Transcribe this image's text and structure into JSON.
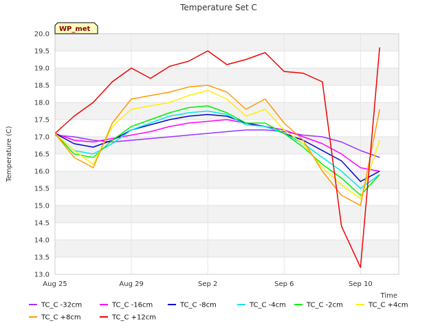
{
  "chart_data": {
    "type": "line",
    "title": "Temperature Set C",
    "xlabel": "Time",
    "ylabel": "Temperature (C)",
    "badge": "WP_met",
    "ylim": [
      13.0,
      20.0
    ],
    "yticks": [
      "13.0",
      "13.5",
      "14.0",
      "14.5",
      "15.0",
      "15.5",
      "16.0",
      "16.5",
      "17.0",
      "17.5",
      "18.0",
      "18.5",
      "19.0",
      "19.5",
      "20.0"
    ],
    "xlim": [
      "2023-08-25",
      "2023-09-12"
    ],
    "xticks": [
      "Aug 25",
      "Aug 29",
      "Sep 2",
      "Sep 6",
      "Sep 10"
    ],
    "xtick_dates": [
      "2023-08-25",
      "2023-08-29",
      "2023-09-02",
      "2023-09-06",
      "2023-09-10"
    ],
    "grid": true,
    "legend_position": "bottom",
    "series": [
      {
        "name": "TC_C -32cm",
        "color": "#9b30ff",
        "x": [
          "2023-08-25",
          "2023-08-26",
          "2023-08-27",
          "2023-08-28",
          "2023-08-29",
          "2023-08-30",
          "2023-08-31",
          "2023-09-01",
          "2023-09-02",
          "2023-09-03",
          "2023-09-04",
          "2023-09-05",
          "2023-09-06",
          "2023-09-07",
          "2023-09-08",
          "2023-09-09",
          "2023-09-10",
          "2023-09-11"
        ],
        "values": [
          17.05,
          17.0,
          16.9,
          16.85,
          16.9,
          16.95,
          17.0,
          17.05,
          17.1,
          17.15,
          17.2,
          17.2,
          17.15,
          17.05,
          17.0,
          16.85,
          16.6,
          16.4
        ]
      },
      {
        "name": "TC_C -16cm",
        "color": "#ff00ff",
        "x": [
          "2023-08-25",
          "2023-08-26",
          "2023-08-27",
          "2023-08-28",
          "2023-08-29",
          "2023-08-30",
          "2023-08-31",
          "2023-09-01",
          "2023-09-02",
          "2023-09-03",
          "2023-09-04",
          "2023-09-05",
          "2023-09-06",
          "2023-09-07",
          "2023-09-08",
          "2023-09-09",
          "2023-09-10",
          "2023-09-11"
        ],
        "values": [
          17.1,
          16.9,
          16.85,
          16.95,
          17.05,
          17.15,
          17.3,
          17.4,
          17.45,
          17.5,
          17.4,
          17.3,
          17.2,
          17.0,
          16.8,
          16.5,
          16.1,
          16.0
        ]
      },
      {
        "name": "TC_C -8cm",
        "color": "#0000cc",
        "x": [
          "2023-08-25",
          "2023-08-26",
          "2023-08-27",
          "2023-08-28",
          "2023-08-29",
          "2023-08-30",
          "2023-08-31",
          "2023-09-01",
          "2023-09-02",
          "2023-09-03",
          "2023-09-04",
          "2023-09-05",
          "2023-09-06",
          "2023-09-07",
          "2023-09-08",
          "2023-09-09",
          "2023-09-10",
          "2023-09-11"
        ],
        "values": [
          17.1,
          16.8,
          16.7,
          16.9,
          17.2,
          17.35,
          17.5,
          17.6,
          17.65,
          17.6,
          17.4,
          17.3,
          17.1,
          16.9,
          16.6,
          16.3,
          15.7,
          16.0
        ]
      },
      {
        "name": "TC_C -4cm",
        "color": "#00e5ee",
        "x": [
          "2023-08-25",
          "2023-08-26",
          "2023-08-27",
          "2023-08-28",
          "2023-08-29",
          "2023-08-30",
          "2023-08-31",
          "2023-09-01",
          "2023-09-02",
          "2023-09-03",
          "2023-09-04",
          "2023-09-05",
          "2023-09-06",
          "2023-09-07",
          "2023-09-08",
          "2023-09-09",
          "2023-09-10",
          "2023-09-11"
        ],
        "values": [
          17.1,
          16.6,
          16.5,
          16.8,
          17.2,
          17.4,
          17.6,
          17.7,
          17.75,
          17.65,
          17.35,
          17.3,
          17.1,
          16.8,
          16.4,
          16.0,
          15.5,
          15.9
        ]
      },
      {
        "name": "TC_C -2cm",
        "color": "#00ee00",
        "x": [
          "2023-08-25",
          "2023-08-26",
          "2023-08-27",
          "2023-08-28",
          "2023-08-29",
          "2023-08-30",
          "2023-08-31",
          "2023-09-01",
          "2023-09-02",
          "2023-09-03",
          "2023-09-04",
          "2023-09-05",
          "2023-09-06",
          "2023-09-07",
          "2023-09-08",
          "2023-09-09",
          "2023-09-10",
          "2023-09-11"
        ],
        "values": [
          17.1,
          16.5,
          16.4,
          16.9,
          17.3,
          17.5,
          17.7,
          17.85,
          17.9,
          17.7,
          17.4,
          17.4,
          17.1,
          16.7,
          16.2,
          15.8,
          15.3,
          15.9
        ]
      },
      {
        "name": "TC_C +4cm",
        "color": "#ffee00",
        "x": [
          "2023-08-25",
          "2023-08-26",
          "2023-08-27",
          "2023-08-28",
          "2023-08-29",
          "2023-08-30",
          "2023-08-31",
          "2023-09-01",
          "2023-09-02",
          "2023-09-03",
          "2023-09-04",
          "2023-09-05",
          "2023-09-06",
          "2023-09-07",
          "2023-09-08",
          "2023-09-09",
          "2023-09-10",
          "2023-09-11"
        ],
        "values": [
          17.1,
          16.6,
          16.2,
          17.3,
          17.8,
          17.9,
          18.0,
          18.2,
          18.35,
          18.1,
          17.6,
          17.8,
          17.2,
          16.8,
          16.1,
          15.6,
          15.2,
          16.9
        ]
      },
      {
        "name": "TC_C +8cm",
        "color": "#ff9900",
        "x": [
          "2023-08-25",
          "2023-08-26",
          "2023-08-27",
          "2023-08-28",
          "2023-08-29",
          "2023-08-30",
          "2023-08-31",
          "2023-09-01",
          "2023-09-02",
          "2023-09-03",
          "2023-09-04",
          "2023-09-05",
          "2023-09-06",
          "2023-09-07",
          "2023-09-08",
          "2023-09-09",
          "2023-09-10",
          "2023-09-11"
        ],
        "values": [
          17.1,
          16.4,
          16.1,
          17.4,
          18.1,
          18.2,
          18.3,
          18.45,
          18.5,
          18.3,
          17.8,
          18.1,
          17.4,
          16.9,
          16.0,
          15.3,
          15.0,
          17.8
        ]
      },
      {
        "name": "TC_C +12cm",
        "color": "#ee0000",
        "x": [
          "2023-08-25",
          "2023-08-26",
          "2023-08-27",
          "2023-08-28",
          "2023-08-29",
          "2023-08-30",
          "2023-08-31",
          "2023-09-01",
          "2023-09-02",
          "2023-09-03",
          "2023-09-04",
          "2023-09-05",
          "2023-09-06",
          "2023-09-07",
          "2023-09-08",
          "2023-09-09",
          "2023-09-10",
          "2023-09-11"
        ],
        "values": [
          17.1,
          17.6,
          18.0,
          18.6,
          19.0,
          18.7,
          19.05,
          19.2,
          19.5,
          19.1,
          19.25,
          19.45,
          18.9,
          18.85,
          18.6,
          14.4,
          13.2,
          19.6
        ]
      }
    ]
  }
}
